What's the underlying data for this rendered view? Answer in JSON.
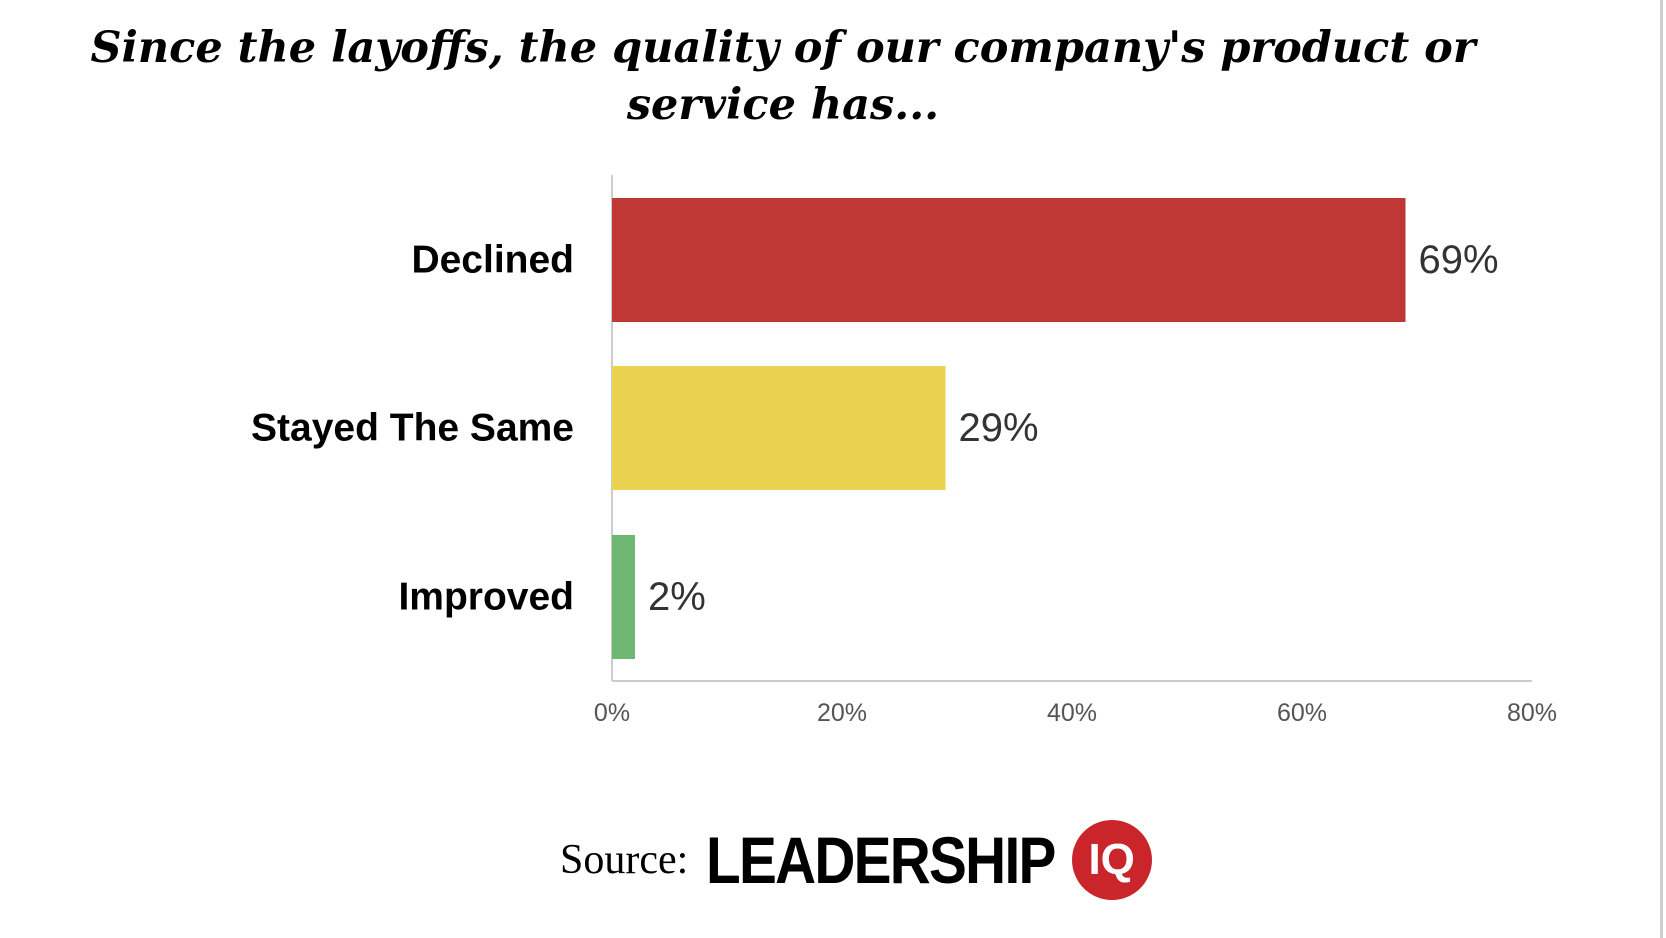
{
  "title": "Since the layoffs, the quality of our company's product or service has...",
  "source": {
    "label": "Source:",
    "brand_text": "LEADERSHIP",
    "brand_badge": "IQ",
    "brand_color": "#c9252b"
  },
  "chart_data": {
    "type": "bar",
    "orientation": "horizontal",
    "title": "Since the layoffs, the quality of our company's product or service has...",
    "categories": [
      "Declined",
      "Stayed The Same",
      "Improved"
    ],
    "values": [
      69,
      29,
      2
    ],
    "data_labels": [
      "69%",
      "29%",
      "2%"
    ],
    "colors": [
      "#c03835",
      "#ead250",
      "#6db773"
    ],
    "xlim": [
      0,
      80
    ],
    "x_ticks": [
      0,
      20,
      40,
      60,
      80
    ],
    "x_tick_labels": [
      "0%",
      "20%",
      "40%",
      "60%",
      "80%"
    ],
    "xlabel": "",
    "ylabel": "",
    "grid": false,
    "legend": "none"
  }
}
